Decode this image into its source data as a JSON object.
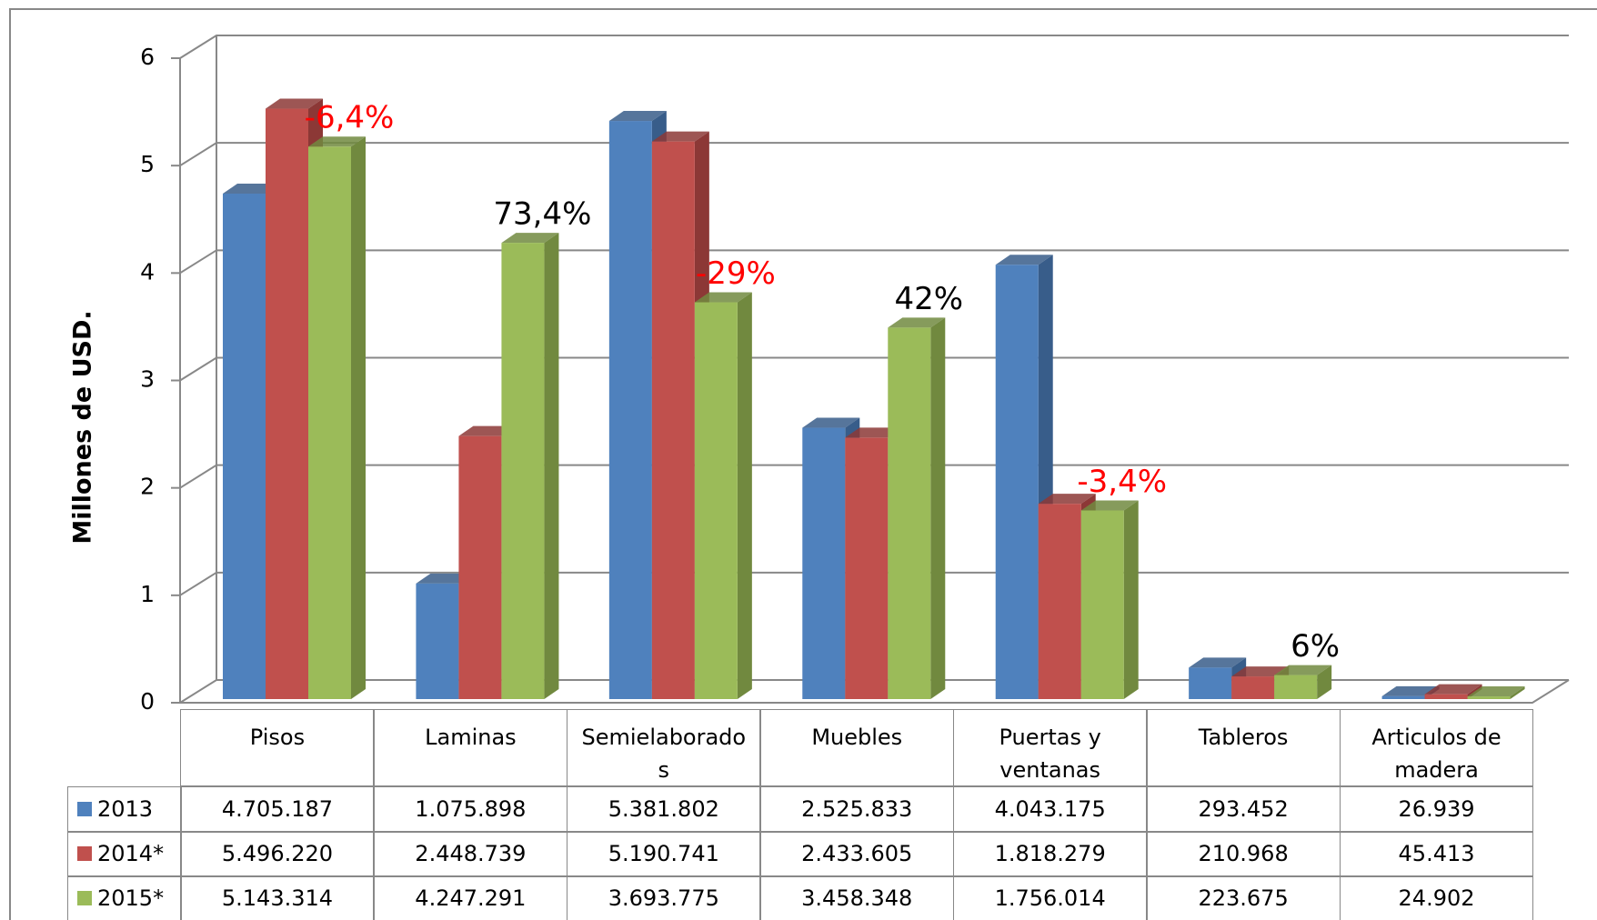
{
  "chart_data": {
    "type": "bar3d",
    "y_label": "Millones de USD.",
    "categories": [
      "Pisos",
      "Laminas",
      "Semielaborados",
      "Muebles",
      "Puertas y ventanas",
      "Tableros",
      "Articulos de madera"
    ],
    "series": [
      {
        "name": "2013",
        "color": "#4f81bd",
        "side": "#385d8a",
        "values": [
          4.705187,
          1.075898,
          5.381802,
          2.525833,
          4.043175,
          0.293452,
          0.026939
        ],
        "value_labels": [
          "4.705.187",
          "1.075.898",
          "5.381.802",
          "2.525.833",
          "4.043.175",
          "293.452",
          "26.939"
        ]
      },
      {
        "name": "2014*",
        "color": "#c0504d",
        "side": "#8c3836",
        "values": [
          5.49622,
          2.448739,
          5.190741,
          2.433605,
          1.818279,
          0.210968,
          0.045413
        ],
        "value_labels": [
          "5.496.220",
          "2.448.739",
          "5.190.741",
          "2.433.605",
          "1.818.279",
          "210.968",
          "45.413"
        ]
      },
      {
        "name": "2015*",
        "color": "#9bbb59",
        "side": "#71893f",
        "values": [
          5.143314,
          4.247291,
          3.693775,
          3.458348,
          1.756014,
          0.223675,
          0.024902
        ],
        "value_labels": [
          "5.143.314",
          "4.247.291",
          "3.693.775",
          "3.458.348",
          "1.756.014",
          "223.675",
          "24.902"
        ]
      }
    ],
    "annotations": [
      "-6,4%",
      "73,4%",
      "-29%",
      "42%",
      "-3,4%",
      "6%",
      null
    ],
    "annotation_colors": [
      "#ff0000",
      "#000000",
      "#ff0000",
      "#000000",
      "#ff0000",
      "#000000",
      null
    ],
    "ylim": [
      0,
      6
    ],
    "yticks": [
      0,
      1,
      2,
      3,
      4,
      5,
      6
    ],
    "grid": true
  }
}
